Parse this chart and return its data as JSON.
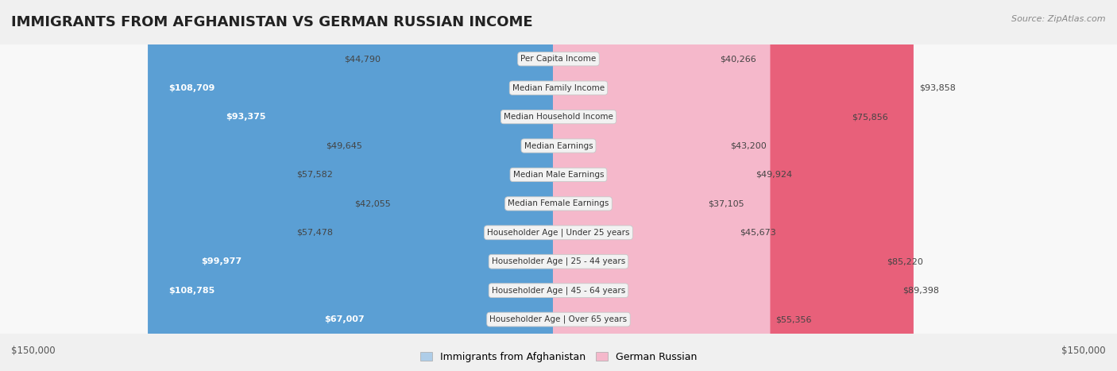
{
  "title": "IMMIGRANTS FROM AFGHANISTAN VS GERMAN RUSSIAN INCOME",
  "source": "Source: ZipAtlas.com",
  "categories": [
    "Per Capita Income",
    "Median Family Income",
    "Median Household Income",
    "Median Earnings",
    "Median Male Earnings",
    "Median Female Earnings",
    "Householder Age | Under 25 years",
    "Householder Age | 25 - 44 years",
    "Householder Age | 45 - 64 years",
    "Householder Age | Over 65 years"
  ],
  "afghanistan_values": [
    44790,
    108709,
    93375,
    49645,
    57582,
    42055,
    57478,
    99977,
    108785,
    67007
  ],
  "german_russian_values": [
    40266,
    93858,
    75856,
    43200,
    49924,
    37105,
    45673,
    85220,
    89398,
    55356
  ],
  "afg_color_light": "#aecde8",
  "afg_color_dark": "#5b9fd4",
  "ger_color_light": "#f5b8cb",
  "ger_color_dark": "#e8607a",
  "max_value": 150000,
  "bg_color": "#f0f0f0",
  "row_color": "#f8f8f8",
  "row_border": "#d8d8d8",
  "label_bg": "#f0f0f0",
  "label_border": "#cccccc",
  "afghanistan_label": "Immigrants from Afghanistan",
  "german_russian_label": "German Russian",
  "dark_threshold": 60000,
  "title_fontsize": 13,
  "source_fontsize": 8,
  "value_fontsize": 8,
  "cat_fontsize": 7.5,
  "legend_fontsize": 9
}
